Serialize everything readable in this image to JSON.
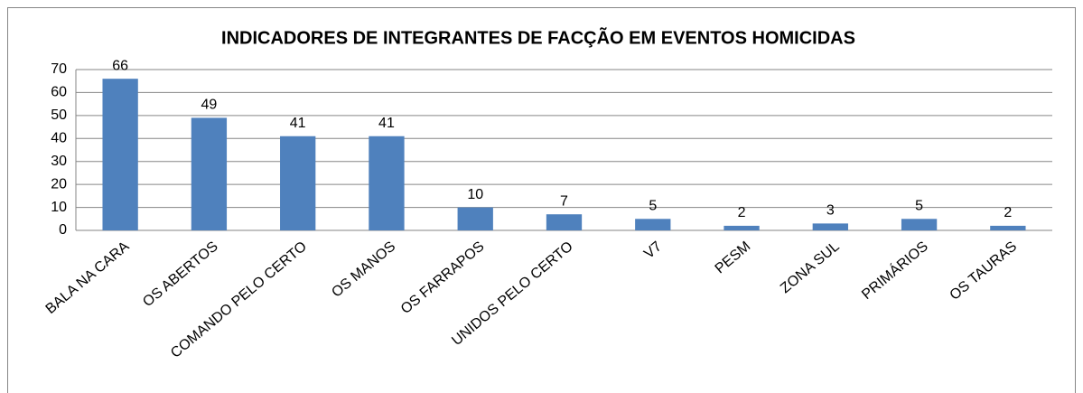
{
  "chart_data": {
    "type": "bar",
    "title": "INDICADORES DE INTEGRANTES DE FACÇÃO EM EVENTOS HOMICIDAS",
    "categories": [
      "BALA NA CARA",
      "OS ABERTOS",
      "COMANDO PELO CERTO",
      "OS MANOS",
      "OS FARRAPOS",
      "UNIDOS PELO CERTO",
      "V7",
      "PESM",
      "ZONA SUL",
      "PRIMÁRIOS",
      "OS TAURAS"
    ],
    "values": [
      66,
      49,
      41,
      41,
      10,
      7,
      5,
      2,
      3,
      5,
      2
    ],
    "color": "#4f81bd",
    "ylim": [
      0,
      70
    ],
    "yticks": [
      0,
      10,
      20,
      30,
      40,
      50,
      60,
      70
    ],
    "grid": true
  }
}
